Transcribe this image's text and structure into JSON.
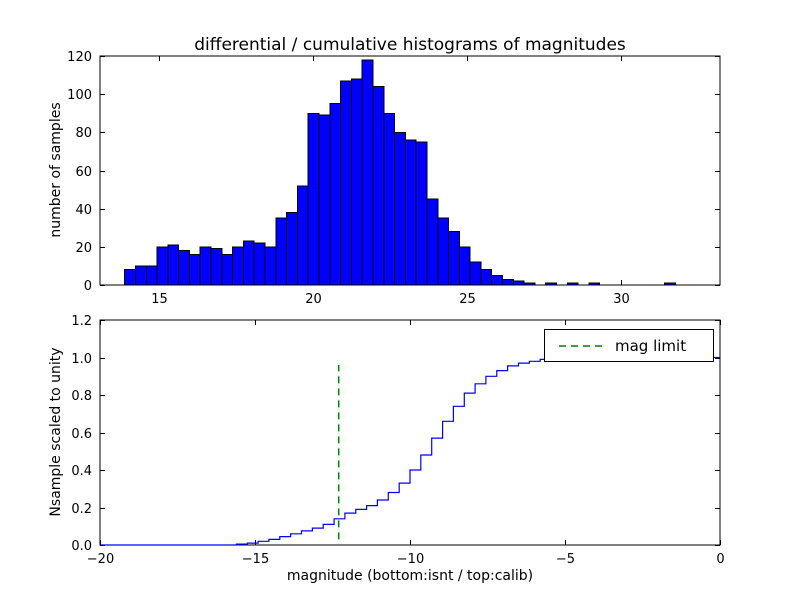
{
  "figure": {
    "title": "differential / cumulative histograms of magnitudes",
    "background": "#ffffff",
    "axis_color": "#000000"
  },
  "chart_data": [
    {
      "type": "bar",
      "name": "differential-histogram",
      "title": "differential / cumulative histograms of magnitudes",
      "xlabel": "",
      "ylabel": "number of samples",
      "bar_color": "#0000ff",
      "bar_edge_color": "#000000",
      "bin_start": 13.9,
      "bin_width": 0.35,
      "counts": [
        8,
        10,
        10,
        20,
        21,
        18,
        16,
        20,
        19,
        16,
        20,
        23,
        22,
        20,
        35,
        38,
        52,
        90,
        89,
        95,
        107,
        108,
        118,
        104,
        90,
        80,
        76,
        75,
        45,
        35,
        28,
        20,
        12,
        8,
        5,
        3,
        2,
        1,
        0,
        1,
        0,
        1,
        0,
        1,
        0,
        0,
        0,
        0,
        0,
        0,
        1,
        0,
        0,
        0
      ],
      "xlim": [
        13.1,
        33.2
      ],
      "ylim": [
        0,
        120
      ],
      "xticks": [
        15,
        20,
        25,
        30
      ],
      "xtick_labels": [
        "15",
        "20",
        "25",
        "30"
      ],
      "yticks": [
        0,
        20,
        40,
        60,
        80,
        100,
        120
      ],
      "ytick_labels": [
        "0",
        "20",
        "40",
        "60",
        "80",
        "100",
        "120"
      ],
      "grid": false,
      "legend": null
    },
    {
      "type": "line",
      "name": "cumulative-histogram",
      "xlabel": "magnitude (bottom:isnt / top:calib)",
      "ylabel": "Nsample scaled to unity",
      "line_color": "#0000ff",
      "step": true,
      "x": [
        -20,
        -15.6,
        -15.25,
        -14.9,
        -14.55,
        -14.2,
        -13.85,
        -13.5,
        -13.15,
        -12.8,
        -12.45,
        -12.1,
        -11.75,
        -11.4,
        -11.05,
        -10.7,
        -10.35,
        -10,
        -9.65,
        -9.3,
        -8.95,
        -8.6,
        -8.25,
        -7.9,
        -7.55,
        -7.2,
        -6.85,
        -6.5,
        -6.15,
        -5.8,
        -5.45,
        -5.1,
        -4.75,
        0
      ],
      "y": [
        0,
        0.005,
        0.01,
        0.02,
        0.03,
        0.045,
        0.06,
        0.075,
        0.09,
        0.11,
        0.14,
        0.17,
        0.19,
        0.21,
        0.24,
        0.28,
        0.33,
        0.4,
        0.48,
        0.57,
        0.66,
        0.74,
        0.81,
        0.86,
        0.9,
        0.93,
        0.955,
        0.97,
        0.98,
        0.99,
        0.995,
        0.998,
        1.0,
        1.0
      ],
      "xlim": [
        -20,
        0
      ],
      "ylim": [
        0,
        1.2
      ],
      "xticks": [
        -20,
        -15,
        -10,
        -5,
        0
      ],
      "xtick_labels": [
        "−20",
        "−15",
        "−10",
        "−5",
        "0"
      ],
      "yticks": [
        0,
        0.2,
        0.4,
        0.6,
        0.8,
        1.0,
        1.2
      ],
      "ytick_labels": [
        "0.0",
        "0.2",
        "0.4",
        "0.6",
        "0.8",
        "1.0",
        "1.2"
      ],
      "grid": false,
      "legend": {
        "position": "upper right",
        "entries": [
          "mag limit"
        ]
      },
      "annotations": [
        {
          "type": "vline",
          "x": -12.3,
          "y_range": [
            0.03,
            0.96
          ],
          "color": "#008000",
          "style": "dashed",
          "label": "mag limit"
        }
      ]
    }
  ]
}
